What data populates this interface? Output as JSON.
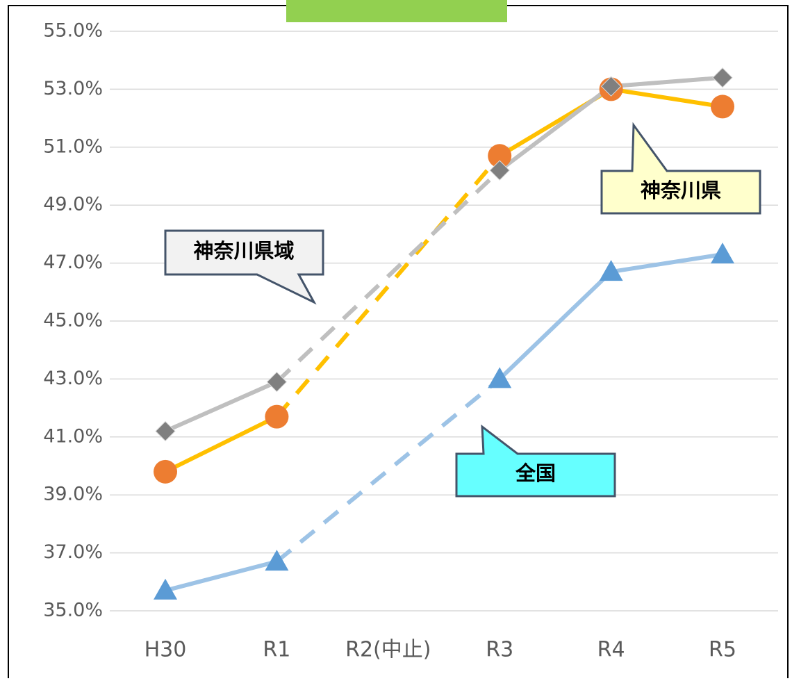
{
  "chart_data": {
    "type": "line",
    "categories": [
      "H30",
      "R1",
      "R2(中止)",
      "R3",
      "R4",
      "R5"
    ],
    "series": [
      {
        "name": "神奈川県",
        "color": "#ffc000",
        "marker_color": "#ed7d31",
        "marker": "circle",
        "values": [
          39.8,
          41.7,
          null,
          50.7,
          53.0,
          52.4
        ]
      },
      {
        "name": "神奈川県域",
        "color": "#bfbfbf",
        "marker_color": "#7f7f7f",
        "marker": "diamond",
        "values": [
          41.2,
          42.9,
          null,
          50.2,
          53.1,
          53.4
        ]
      },
      {
        "name": "全国",
        "color": "#9dc3e6",
        "marker_color": "#5b9bd5",
        "marker": "triangle",
        "values": [
          35.7,
          36.7,
          null,
          43.0,
          46.7,
          47.3
        ]
      }
    ],
    "ylim": [
      35,
      55
    ],
    "yticks": [
      {
        "value": 35,
        "label": "35.0%"
      },
      {
        "value": 37,
        "label": "37.0%"
      },
      {
        "value": 39,
        "label": "39.0%"
      },
      {
        "value": 41,
        "label": "41.0%"
      },
      {
        "value": 43,
        "label": "43.0%"
      },
      {
        "value": 45,
        "label": "45.0%"
      },
      {
        "value": 47,
        "label": "47.0%"
      },
      {
        "value": 49,
        "label": "49.0%"
      },
      {
        "value": 51,
        "label": "51.0%"
      },
      {
        "value": 53,
        "label": "53.0%"
      },
      {
        "value": 55,
        "label": "55.0%"
      }
    ],
    "grid": true
  }
}
